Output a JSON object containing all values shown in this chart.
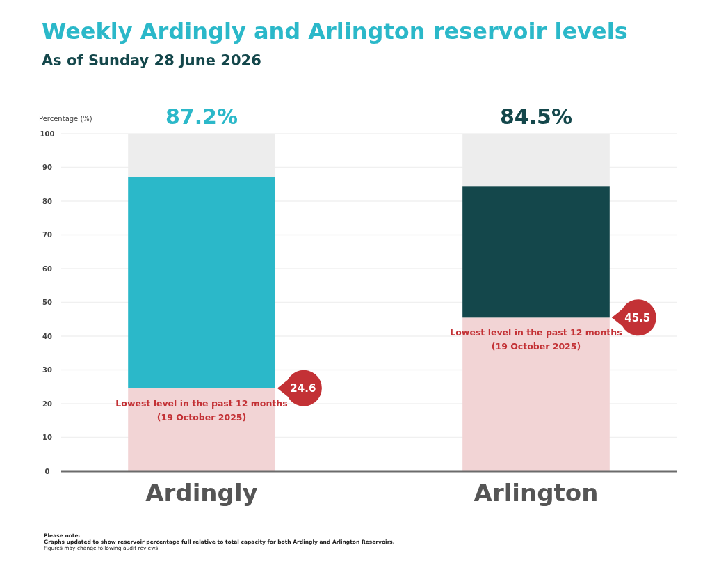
{
  "chart_data": {
    "type": "bar",
    "stacked": true,
    "title": "Weekly Ardingly and Arlington reservoir levels",
    "subtitle": "As of Sunday 28 June 2026",
    "ylabel": "Percentage (%)",
    "categories": [
      "Ardingly",
      "Arlington"
    ],
    "series": [
      {
        "color": "#f2d4d5",
        "values": [
          24.6,
          45.5
        ]
      },
      {
        "colors": [
          "#2bb8c9",
          "#14474b"
        ],
        "values": [
          62.6,
          39.0
        ]
      },
      {
        "color": "#ededed",
        "values": [
          12.8,
          15.5
        ]
      }
    ],
    "ylim": [
      0,
      100
    ],
    "yticks": [
      0,
      10,
      20,
      30,
      40,
      50,
      60,
      70,
      80,
      90,
      100
    ],
    "grid": "y",
    "annotations": [
      "87.2%",
      "84.5%",
      "24.6",
      "45.5",
      {
        "text": "Lowest level in the past 12 months\n(19 October 2025)",
        "x": "Ardingly",
        "y": 24.6
      },
      {
        "text": "Lowest level in the past 12 months\n(19 October 2025)",
        "x": "Arlington",
        "y": 45.5
      },
      "Please note:",
      "Graphs updated to show reservoir percentage full relative to total capacity for both Ardingly and Arlington Reservoirs.",
      "Figures may change following audit reviews."
    ]
  }
}
